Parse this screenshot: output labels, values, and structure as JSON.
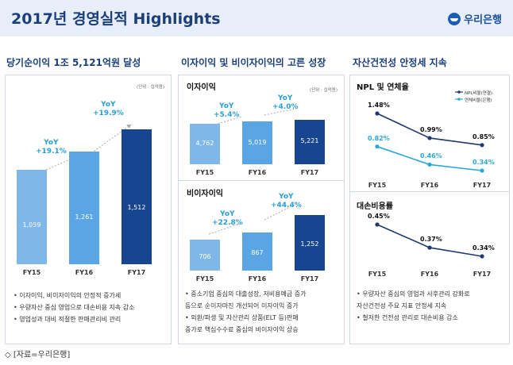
{
  "header": {
    "title": "2017년 경영실적 Highlights",
    "logo_text": "우리은행"
  },
  "panels": {
    "net_income": {
      "title": "당기순이익 1조 5,121억원 달성",
      "unit": "(단위 : 십억원)"
    },
    "interest": {
      "title": "이자이익 및 비이자이익의 고른 성장",
      "sub1": "이자이익",
      "sub2": "비이자이익",
      "unit": "(단위 : 십억원)"
    },
    "asset": {
      "title": "자산건전성 안정세 지속",
      "sub1": "NPL 및 연체율",
      "sub2": "대손비용률"
    }
  },
  "chart_data": [
    {
      "type": "bar",
      "title": "당기순이익 1조 5,121억원 달성",
      "categories": [
        "FY15",
        "FY16",
        "FY17"
      ],
      "values": [
        1059,
        1261,
        1512
      ],
      "value_labels": [
        "1,059",
        "1,261",
        "1,512"
      ],
      "annotations": [
        "YoY\n+19.1%",
        "YoY\n+19.9%"
      ],
      "unit": "(단위 : 십억원)"
    },
    {
      "type": "bar",
      "title": "이자이익",
      "categories": [
        "FY15",
        "FY16",
        "FY17"
      ],
      "values": [
        4762,
        5019,
        5221
      ],
      "value_labels": [
        "4,762",
        "5,019",
        "5,221"
      ],
      "annotations": [
        "YoY\n+5.4%",
        "YoY\n+4.0%"
      ],
      "unit": "(단위 : 십억원)"
    },
    {
      "type": "bar",
      "title": "비이자이익",
      "categories": [
        "FY15",
        "FY16",
        "FY17"
      ],
      "values": [
        706,
        867,
        1252
      ],
      "value_labels": [
        "706",
        "867",
        "1,252"
      ],
      "annotations": [
        "YoY\n+22.8%",
        "YoY\n+44.4%"
      ]
    },
    {
      "type": "line",
      "title": "NPL 및 연체율",
      "categories": [
        "FY15",
        "FY16",
        "FY17"
      ],
      "series": [
        {
          "name": "NPL비율(연결)",
          "values": [
            1.48,
            0.99,
            0.85
          ],
          "labels": [
            "1.48%",
            "0.99%",
            "0.85%"
          ],
          "color": "#1f3b6e"
        },
        {
          "name": "연체비율(은행)",
          "values": [
            0.82,
            0.46,
            0.34
          ],
          "labels": [
            "0.82%",
            "0.46%",
            "0.34%"
          ],
          "color": "#2aa8d8"
        }
      ]
    },
    {
      "type": "line",
      "title": "대손비용률",
      "categories": [
        "FY15",
        "FY16",
        "FY17"
      ],
      "series": [
        {
          "name": "대손비용률",
          "values": [
            0.45,
            0.37,
            0.34
          ],
          "labels": [
            "0.45%",
            "0.37%",
            "0.34%"
          ],
          "color": "#1f3b6e"
        }
      ]
    }
  ],
  "bullets": {
    "p1": [
      "• 이자이익, 비이자이익의 안정적 증가세",
      "• 우량자산 중심 영업으로 대손비용 지속 감소",
      "• 영업성과 대비 적절한 판매관리비 관리"
    ],
    "p2": [
      "• 중소기업 중심의 대출성장, 저비용예금 증가",
      "  등으로 순이자마진 개선되어 이자이익 증가",
      "• 외환/파생 및 자산관리 상품(ELT 등)판매",
      "  증가로 핵심수수료 중심의 비이자이익 상승"
    ],
    "p3": [
      "• 우량자산 중심의 영업과 사후관리 강화로",
      "  자산건전성 주요 지표 안정세 지속",
      "• 철저한 건전성 관리로 대손비용 감소"
    ]
  },
  "footer": "◇ [자료=우리은행]",
  "colors": {
    "bar1": "#7fb8e8",
    "bar2": "#5aa5e4",
    "bar3": "#17458f",
    "accent": "#2a9fd8"
  }
}
